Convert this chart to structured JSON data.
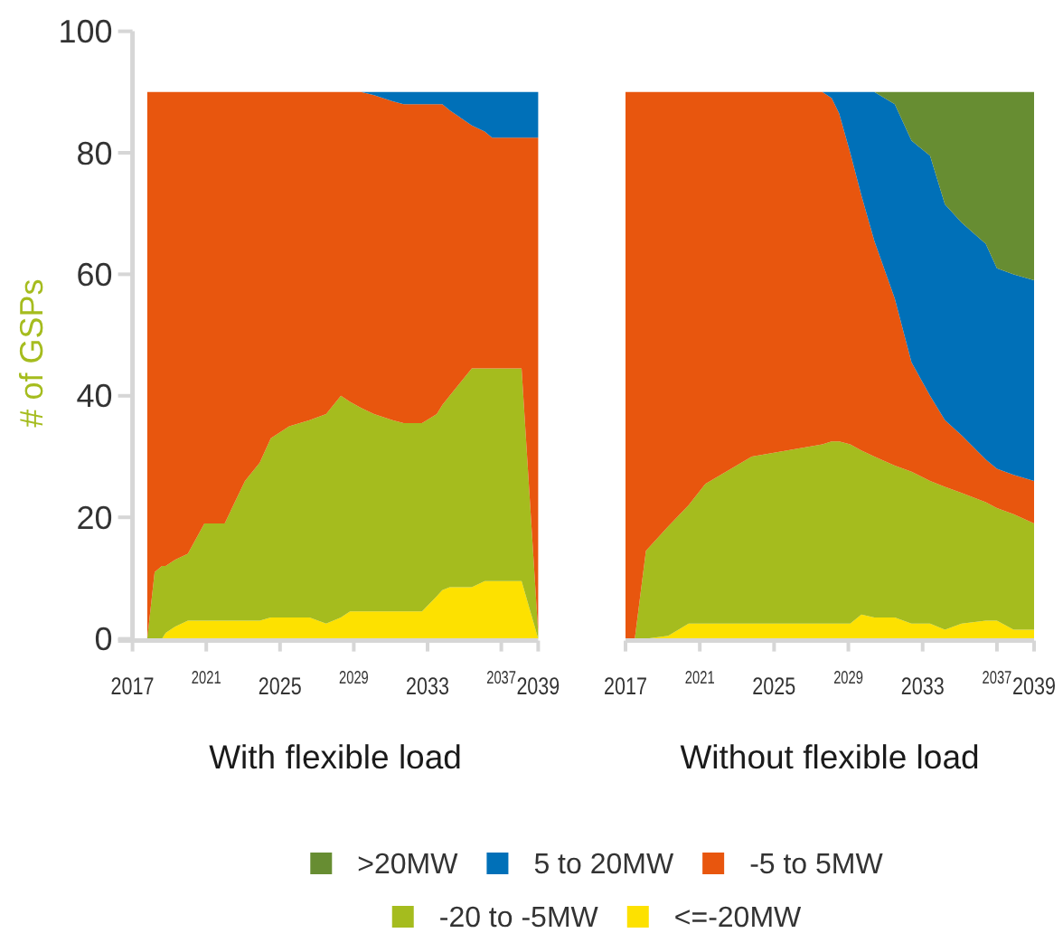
{
  "chart_data": [
    {
      "type": "area",
      "stacked": true,
      "title": "With flexible load",
      "ylabel": "# of GSPs",
      "xlim": [
        2017,
        2039
      ],
      "xticks": [
        2017,
        2021,
        2025,
        2029,
        2033,
        2037,
        2039
      ],
      "ylim": [
        0,
        100
      ],
      "yticks": [
        0,
        20,
        40,
        60,
        80,
        100
      ],
      "x": [
        2017.8,
        2018.2,
        2018.6,
        2018.8,
        2019.3,
        2020.0,
        2020.9,
        2022.0,
        2023.1,
        2023.9,
        2024.5,
        2025.5,
        2026.6,
        2027.5,
        2028.3,
        2028.8,
        2029.4,
        2030.1,
        2031.1,
        2031.7,
        2032.7,
        2033.5,
        2033.8,
        2034.2,
        2035.4,
        2036.1,
        2036.5,
        2038.1,
        2039
      ],
      "series": [
        {
          "color": "#fde100",
          "values": [
            0,
            0,
            0,
            1,
            2,
            3,
            3,
            3,
            3,
            3,
            3.5,
            3.5,
            3.5,
            2.5,
            3.5,
            4.5,
            4.5,
            4.5,
            4.5,
            4.5,
            4.5,
            7,
            8,
            8.5,
            8.5,
            9.5,
            9.5,
            9.5,
            0
          ]
        },
        {
          "color": "#a5bc1e",
          "values": [
            0,
            11,
            12,
            11,
            11,
            11,
            16,
            16,
            23,
            26,
            29.5,
            31.5,
            32.5,
            34.5,
            36.5,
            34.5,
            33.5,
            32.5,
            31.5,
            31,
            31,
            30,
            30.5,
            31.5,
            36,
            35,
            35,
            35,
            1
          ]
        },
        {
          "color": "#e8560e",
          "values": [
            90,
            79,
            78,
            78,
            77,
            76,
            71,
            71,
            64,
            61,
            57,
            55,
            54,
            53,
            50,
            51,
            52,
            52.5,
            52.5,
            52.5,
            52.5,
            51,
            49.5,
            47,
            40,
            39,
            38,
            38,
            81.5
          ]
        },
        {
          "color": "#0070b8",
          "values": [
            0,
            0,
            0,
            0,
            0,
            0,
            0,
            0,
            0,
            0,
            0,
            0,
            0,
            0,
            0,
            0,
            0,
            0.5,
            1.5,
            2,
            2,
            2,
            2,
            3,
            5.5,
            6.5,
            7.5,
            7.5,
            7.5
          ]
        }
      ]
    },
    {
      "type": "area",
      "stacked": true,
      "title": "Without flexible load",
      "xlim": [
        2017,
        2039
      ],
      "xticks": [
        2017,
        2021,
        2025,
        2029,
        2033,
        2037,
        2039
      ],
      "ylim": [
        0,
        100
      ],
      "tick_labels": "x",
      "legend": "bottom",
      "x": [
        2017,
        2017.5,
        2018.1,
        2019.3,
        2020.4,
        2021.3,
        2023.8,
        2027.6,
        2028.1,
        2028.5,
        2029.1,
        2029.7,
        2030.4,
        2031.5,
        2032.4,
        2033.4,
        2034.2,
        2035.1,
        2036.4,
        2037,
        2037.9,
        2039
      ],
      "series": [
        {
          "name": "<=-20MW",
          "color": "#fde100",
          "values": [
            0,
            0,
            0,
            0.5,
            2.5,
            2.5,
            2.5,
            2.5,
            2.5,
            2.5,
            2.5,
            4,
            3.5,
            3.5,
            2.5,
            2.5,
            1.5,
            2.5,
            3,
            3,
            1.5,
            1.5
          ]
        },
        {
          "name": "-20 to -5MW",
          "color": "#a5bc1e",
          "values": [
            0,
            0,
            14.5,
            18,
            19.5,
            23,
            27.5,
            29.5,
            30,
            30,
            29.5,
            27,
            26.5,
            25,
            25,
            23.5,
            23.5,
            21.5,
            19.5,
            18.5,
            19,
            17.5
          ]
        },
        {
          "name": "-5 to 5MW",
          "color": "#e8560e",
          "values": [
            90,
            90,
            75.5,
            71.5,
            68,
            64.5,
            60,
            58,
            56.5,
            54,
            48,
            42,
            35.5,
            27.5,
            18,
            14,
            11,
            9.5,
            7,
            6.5,
            6.5,
            7
          ]
        },
        {
          "name": "5 to 20MW",
          "color": "#0070b8",
          "values": [
            0,
            0,
            0,
            0,
            0,
            0,
            0,
            0,
            1,
            3.5,
            10,
            17,
            24.5,
            32,
            36.5,
            39.5,
            35.5,
            35,
            35.5,
            33,
            33,
            33
          ]
        },
        {
          "name": ">20MW",
          "color": "#678d32",
          "values": [
            0,
            0,
            0,
            0,
            0,
            0,
            0,
            0,
            0,
            0,
            0,
            0,
            0,
            2,
            8,
            10.5,
            18.5,
            21.5,
            25,
            29,
            30,
            31
          ]
        }
      ]
    }
  ]
}
